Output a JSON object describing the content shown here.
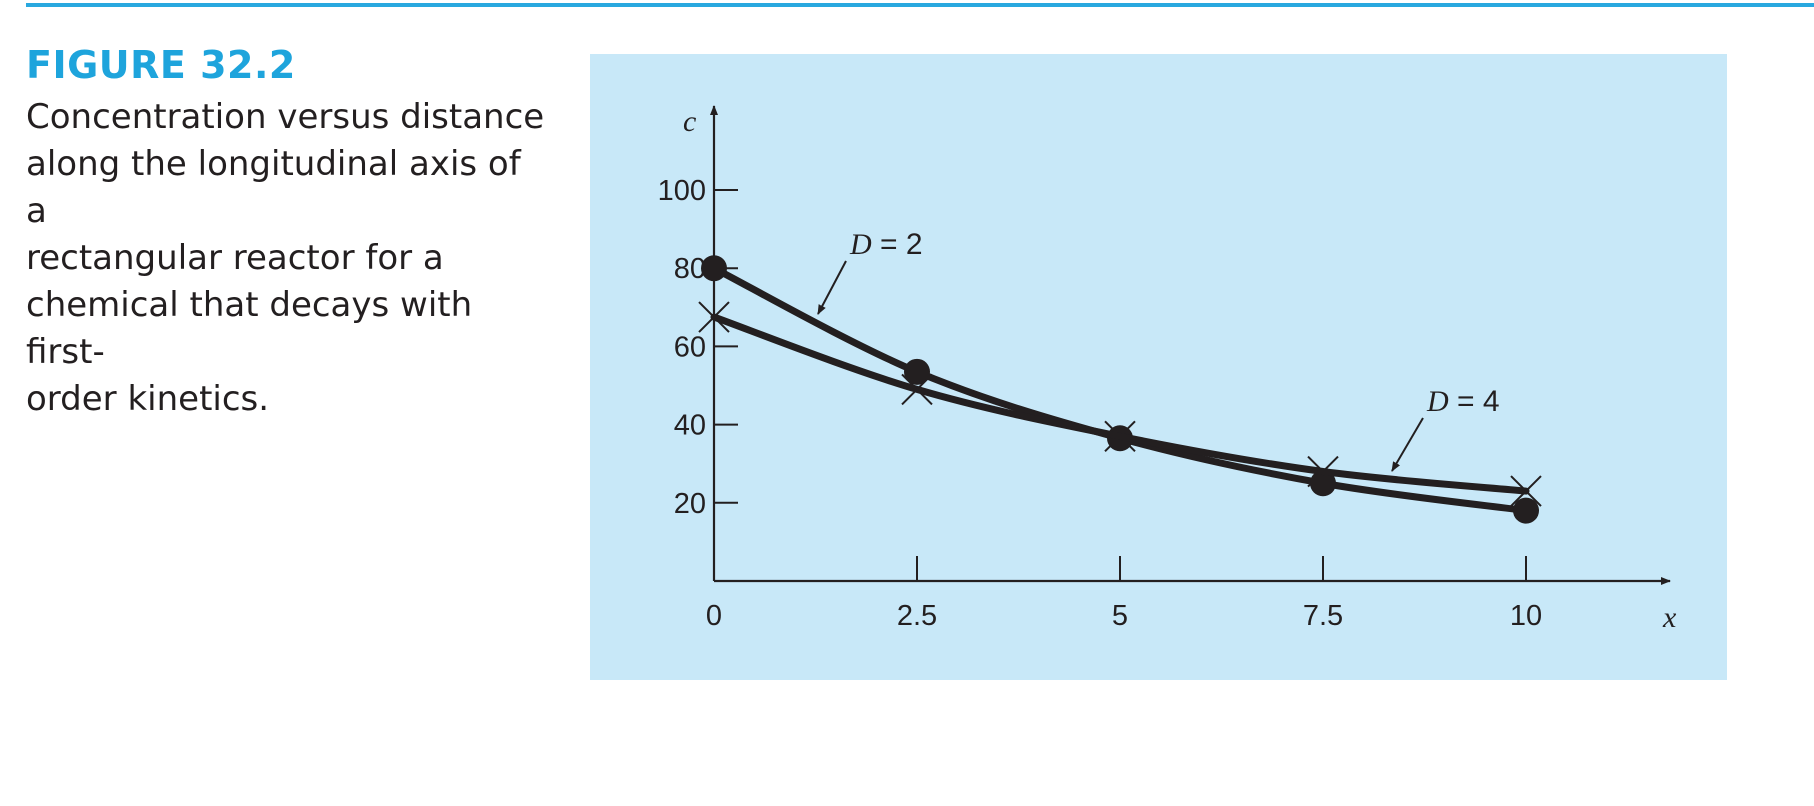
{
  "figure": {
    "label": "FIGURE 32.2",
    "caption_lines": [
      "Concentration versus distance",
      "along the longitudinal axis of a",
      "rectangular reactor for a",
      "chemical that decays with first-",
      "order kinetics."
    ]
  },
  "colors": {
    "accent": "#1ea4dc",
    "panel_background": "#c8e8f8",
    "ink": "#231f20"
  },
  "chart_data": {
    "type": "line",
    "title": "",
    "xlabel": "x",
    "ylabel": "c",
    "xlim": [
      0,
      10
    ],
    "ylim": [
      0,
      100
    ],
    "x_ticks": [
      "0",
      "2.5",
      "5",
      "7.5",
      "10"
    ],
    "y_ticks": [
      "20",
      "40",
      "60",
      "80",
      "100"
    ],
    "grid": false,
    "series": [
      {
        "name": "D = 2",
        "marker": "filled-circle",
        "x": [
          0,
          2.5,
          5,
          7.5,
          10
        ],
        "y": [
          80,
          53.5,
          36.5,
          25,
          18
        ]
      },
      {
        "name": "D = 4",
        "marker": "x-cross",
        "x": [
          0,
          2.5,
          5,
          7.5,
          10
        ],
        "y": [
          67.5,
          49,
          37,
          28,
          23
        ]
      }
    ]
  }
}
